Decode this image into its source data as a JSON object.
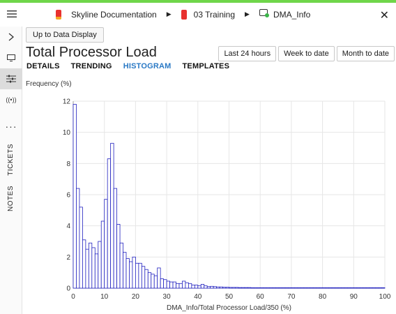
{
  "breadcrumb": {
    "items": [
      {
        "label": "Skyline Documentation",
        "color": "#e8312f",
        "color2": "#f5a623"
      },
      {
        "label": "03 Training",
        "color": "#e8312f"
      },
      {
        "label": "DMA_Info",
        "color": "#ffffff",
        "dot": "#3cb54a"
      }
    ],
    "close_icon": "close-icon"
  },
  "leftbar": {
    "icons": [
      "hamburger-icon",
      "chevron-right-icon",
      "monitor-icon",
      "sliders-icon",
      "radio-signal-icon",
      "more-icon"
    ],
    "tickets_label": "TICKETS",
    "notes_label": "NOTES"
  },
  "header": {
    "up_button": "Up to Data Display",
    "title": "Total Processor Load",
    "tabs": [
      "DETAILS",
      "TRENDING",
      "HISTOGRAM",
      "TEMPLATES"
    ],
    "active_tab": "HISTOGRAM",
    "range_buttons": [
      "Last 24 hours",
      "Week to date",
      "Month to date"
    ]
  },
  "chart_data": {
    "type": "bar",
    "ylabel": "Frequency (%)",
    "xlabel": "DMA_Info/Total Processor Load/350 (%)",
    "xlim": [
      0,
      100
    ],
    "ylim": [
      0,
      12
    ],
    "xticks": [
      0,
      10,
      20,
      30,
      40,
      50,
      60,
      70,
      80,
      90,
      100
    ],
    "yticks": [
      0,
      2,
      4,
      6,
      8,
      10,
      12
    ],
    "bin_width": 1,
    "bar_color": "#1f1fbf",
    "bar_fill": "#ffffff",
    "values": [
      11.8,
      6.4,
      5.2,
      3.1,
      2.5,
      2.9,
      2.6,
      2.2,
      3.0,
      4.3,
      5.7,
      8.3,
      9.3,
      6.4,
      4.1,
      2.9,
      2.3,
      1.9,
      1.7,
      2.0,
      1.6,
      1.6,
      1.4,
      1.2,
      1.0,
      0.9,
      0.8,
      1.3,
      0.6,
      0.55,
      0.45,
      0.4,
      0.4,
      0.3,
      0.3,
      0.45,
      0.35,
      0.3,
      0.2,
      0.2,
      0.15,
      0.25,
      0.15,
      0.1,
      0.12,
      0.1,
      0.08,
      0.08,
      0.06,
      0.06,
      0.05,
      0.05,
      0.05,
      0.04,
      0.04,
      0.04,
      0.04,
      0.03,
      0.03,
      0.03,
      0.03,
      0.03,
      0.03,
      0.03,
      0.03,
      0.03,
      0.03,
      0.03,
      0.03,
      0.03,
      0.03,
      0.03,
      0.03,
      0.03,
      0.03,
      0.03,
      0.03,
      0.03,
      0.03,
      0.03,
      0.03,
      0.03,
      0.03,
      0.03,
      0.03,
      0.03,
      0.03,
      0.03,
      0.03,
      0.03,
      0.03,
      0.03,
      0.03,
      0.03,
      0.03,
      0.03,
      0.03,
      0.03,
      0.03,
      0.03
    ]
  }
}
